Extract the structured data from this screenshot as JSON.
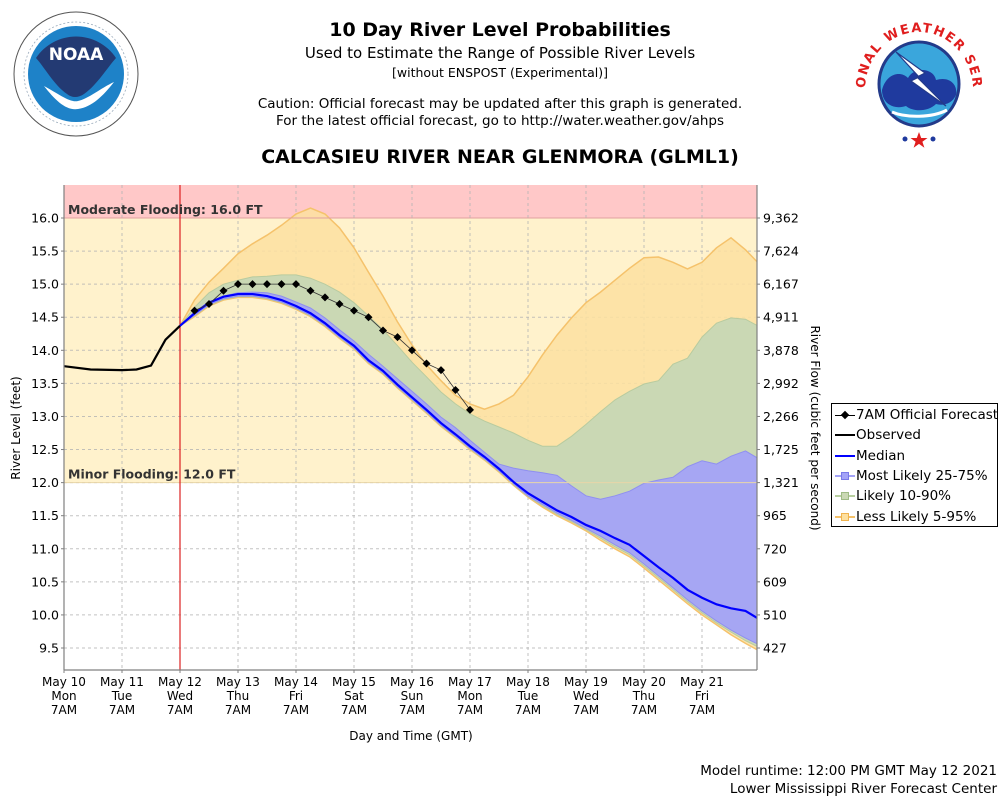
{
  "header": {
    "title": "10 Day River Level Probabilities",
    "subtitle": "Used to Estimate the Range of Possible River Levels",
    "subtitle2": "[without ENSPOST (Experimental)]",
    "caution_line1": "Caution: Official forecast may be updated after this graph is generated.",
    "caution_line2": "For the latest official forecast, go to http://water.weather.gov/ahps",
    "station": "CALCASIEU RIVER NEAR GLENMORA (GLML1)",
    "left_logo": "noaa-logo",
    "right_logo": "nws-logo",
    "noaa_logo_text": "NOAA",
    "nws_logo_text": "NATIONAL WEATHER SERVICE"
  },
  "footer": {
    "runtime": "Model runtime: 12:00 PM GMT May 12 2021",
    "center": "Lower Mississippi River Forecast Center"
  },
  "colors": {
    "moderate_flood_band": "#ffc8c8",
    "minor_flood_band": "#fff2cc",
    "band_5_95": "#fde0a0",
    "band_5_95_edge": "#f5c26b",
    "band_10_90": "#cad8b4",
    "band_25_75": "#a3a3f7",
    "median": "#0000ff",
    "observed": "#000000",
    "forecast": "#000000",
    "now_line": "#dd2222"
  },
  "chart_data": {
    "type": "area",
    "title": "10 Day River Level Probabilities",
    "xlabel": "Day and Time (GMT)",
    "ylabel": "River Level (feet)",
    "y2label": "River Flow (cubic feet per second)",
    "x_unit": "hours since May 10 7AM GMT",
    "xlim": [
      0,
      263
    ],
    "ylim": [
      9.17,
      16.5
    ],
    "grid": true,
    "legend_position": "right",
    "x_ticks": [
      {
        "hour": 0,
        "label": [
          "May 10",
          "Mon",
          "7AM"
        ]
      },
      {
        "hour": 24,
        "label": [
          "May 11",
          "Tue",
          "7AM"
        ]
      },
      {
        "hour": 48,
        "label": [
          "May 12",
          "Wed",
          "7AM"
        ]
      },
      {
        "hour": 72,
        "label": [
          "May 13",
          "Thu",
          "7AM"
        ]
      },
      {
        "hour": 96,
        "label": [
          "May 14",
          "Fri",
          "7AM"
        ]
      },
      {
        "hour": 120,
        "label": [
          "May 15",
          "Sat",
          "7AM"
        ]
      },
      {
        "hour": 144,
        "label": [
          "May 16",
          "Sun",
          "7AM"
        ]
      },
      {
        "hour": 168,
        "label": [
          "May 17",
          "Mon",
          "7AM"
        ]
      },
      {
        "hour": 192,
        "label": [
          "May 18",
          "Tue",
          "7AM"
        ]
      },
      {
        "hour": 216,
        "label": [
          "May 19",
          "Wed",
          "7AM"
        ]
      },
      {
        "hour": 240,
        "label": [
          "May 20",
          "Thu",
          "7AM"
        ]
      },
      {
        "hour": 264,
        "label": [
          "May 21",
          "Fri",
          "7AM"
        ]
      }
    ],
    "y_ticks": [
      {
        "stage": 16.0,
        "label": "16.0",
        "flow": "9,362"
      },
      {
        "stage": 15.5,
        "label": "15.5",
        "flow": "7,624"
      },
      {
        "stage": 15.0,
        "label": "15.0",
        "flow": "6,167"
      },
      {
        "stage": 14.5,
        "label": "14.5",
        "flow": "4,911"
      },
      {
        "stage": 14.0,
        "label": "14.0",
        "flow": "3,878"
      },
      {
        "stage": 13.5,
        "label": "13.5",
        "flow": "2,992"
      },
      {
        "stage": 13.0,
        "label": "13.0",
        "flow": "2,266"
      },
      {
        "stage": 12.5,
        "label": "12.5",
        "flow": "1,725"
      },
      {
        "stage": 12.0,
        "label": "12.0",
        "flow": "1,321"
      },
      {
        "stage": 11.5,
        "label": "11.5",
        "flow": "965"
      },
      {
        "stage": 11.0,
        "label": "11.0",
        "flow": "720"
      },
      {
        "stage": 10.5,
        "label": "10.5",
        "flow": "609"
      },
      {
        "stage": 10.0,
        "label": "10.0",
        "flow": "510"
      },
      {
        "stage": 9.5,
        "label": "9.5",
        "flow": "427"
      }
    ],
    "thresholds": [
      {
        "name": "Moderate Flooding",
        "stage": 16.0,
        "label": "Moderate Flooding: 16.0 FT"
      },
      {
        "name": "Minor Flooding",
        "stage": 12.0,
        "label": "Minor Flooding: 12.0 FT"
      }
    ],
    "now_hour": 48,
    "legend": [
      {
        "key": "forecast",
        "label": "7AM Official Forecast"
      },
      {
        "key": "observed",
        "label": "Observed"
      },
      {
        "key": "median",
        "label": "Median"
      },
      {
        "key": "p25_75",
        "label": "Most Likely 25-75%"
      },
      {
        "key": "p10_90",
        "label": "Likely 10-90%"
      },
      {
        "key": "p5_95",
        "label": "Less Likely 5-95%"
      }
    ],
    "band_hours": [
      48,
      54,
      60,
      66,
      72,
      78,
      84,
      90,
      96,
      102,
      108,
      114,
      120,
      126,
      132,
      138,
      144,
      150,
      156,
      162,
      168,
      174,
      180,
      186,
      192,
      198,
      204,
      210,
      216,
      222,
      228,
      234,
      240,
      246,
      252,
      258,
      264,
      270,
      276,
      282,
      287
    ],
    "observed": {
      "hours": [
        0,
        11,
        24,
        30,
        36,
        42,
        48
      ],
      "stage": [
        13.76,
        13.71,
        13.7,
        13.71,
        13.77,
        14.16,
        14.37
      ]
    },
    "forecast": {
      "hours": [
        54,
        60,
        66,
        72,
        78,
        84,
        90,
        96,
        102,
        108,
        114,
        120,
        126,
        132,
        138,
        144,
        150,
        156,
        162,
        168
      ],
      "stage": [
        14.6,
        14.7,
        14.9,
        15.0,
        15.0,
        15.0,
        15.0,
        15.0,
        14.9,
        14.8,
        14.7,
        14.6,
        14.5,
        14.3,
        14.2,
        14.0,
        13.8,
        13.7,
        13.4,
        13.1
      ]
    },
    "median": [
      14.37,
      14.56,
      14.72,
      14.81,
      14.85,
      14.85,
      14.82,
      14.76,
      14.67,
      14.56,
      14.41,
      14.23,
      14.07,
      13.85,
      13.69,
      13.48,
      13.29,
      13.1,
      12.9,
      12.73,
      12.55,
      12.39,
      12.21,
      12.01,
      11.84,
      11.71,
      11.58,
      11.48,
      11.36,
      11.27,
      11.16,
      11.06,
      10.89,
      10.72,
      10.56,
      10.38,
      10.26,
      10.16,
      10.1,
      10.06,
      9.95
    ],
    "p95": [
      14.37,
      14.76,
      15.03,
      15.24,
      15.46,
      15.61,
      15.74,
      15.89,
      16.06,
      16.15,
      16.06,
      15.85,
      15.55,
      15.18,
      14.82,
      14.43,
      14.08,
      13.78,
      13.54,
      13.32,
      13.19,
      13.11,
      13.19,
      13.32,
      13.6,
      13.93,
      14.23,
      14.49,
      14.72,
      14.88,
      15.06,
      15.24,
      15.4,
      15.41,
      15.33,
      15.23,
      15.33,
      15.55,
      15.7,
      15.52,
      15.33
    ],
    "p90": [
      14.37,
      14.65,
      14.87,
      15.0,
      15.06,
      15.11,
      15.12,
      15.14,
      15.14,
      15.09,
      15.0,
      14.88,
      14.72,
      14.52,
      14.31,
      14.07,
      13.82,
      13.6,
      13.37,
      13.19,
      13.04,
      12.93,
      12.84,
      12.75,
      12.64,
      12.55,
      12.55,
      12.7,
      12.88,
      13.07,
      13.25,
      13.38,
      13.49,
      13.54,
      13.79,
      13.88,
      14.2,
      14.41,
      14.49,
      14.47,
      14.37
    ],
    "p75": [
      14.37,
      14.58,
      14.73,
      14.82,
      14.87,
      14.88,
      14.87,
      14.82,
      14.73,
      14.64,
      14.49,
      14.31,
      14.14,
      13.94,
      13.76,
      13.57,
      13.38,
      13.19,
      12.99,
      12.83,
      12.64,
      12.46,
      12.28,
      12.22,
      12.18,
      12.15,
      12.11,
      11.95,
      11.8,
      11.75,
      11.8,
      11.87,
      11.99,
      12.04,
      12.08,
      12.24,
      12.33,
      12.28,
      12.4,
      12.48,
      12.37
    ],
    "p25": [
      14.37,
      14.53,
      14.69,
      14.78,
      14.82,
      14.82,
      14.79,
      14.73,
      14.64,
      14.53,
      14.38,
      14.2,
      14.04,
      13.82,
      13.66,
      13.45,
      13.26,
      13.07,
      12.87,
      12.7,
      12.52,
      12.36,
      12.18,
      11.98,
      11.8,
      11.67,
      11.54,
      11.43,
      11.31,
      11.19,
      11.06,
      10.94,
      10.77,
      10.59,
      10.41,
      10.23,
      10.06,
      9.91,
      9.77,
      9.65,
      9.56
    ],
    "p10": [
      14.37,
      14.52,
      14.68,
      14.77,
      14.81,
      14.81,
      14.78,
      14.72,
      14.63,
      14.52,
      14.37,
      14.19,
      14.03,
      13.81,
      13.65,
      13.44,
      13.25,
      13.06,
      12.86,
      12.69,
      12.51,
      12.35,
      12.17,
      11.97,
      11.79,
      11.65,
      11.52,
      11.41,
      11.29,
      11.16,
      11.03,
      10.91,
      10.74,
      10.56,
      10.38,
      10.2,
      10.03,
      9.88,
      9.74,
      9.61,
      9.52
    ],
    "p5": [
      14.37,
      14.51,
      14.67,
      14.76,
      14.8,
      14.8,
      14.77,
      14.71,
      14.62,
      14.51,
      14.36,
      14.18,
      14.02,
      13.8,
      13.64,
      13.43,
      13.24,
      13.05,
      12.85,
      12.68,
      12.5,
      12.34,
      12.16,
      11.96,
      11.78,
      11.63,
      11.5,
      11.39,
      11.27,
      11.13,
      11.0,
      10.88,
      10.71,
      10.53,
      10.35,
      10.17,
      10.0,
      9.85,
      9.7,
      9.57,
      9.47
    ]
  }
}
